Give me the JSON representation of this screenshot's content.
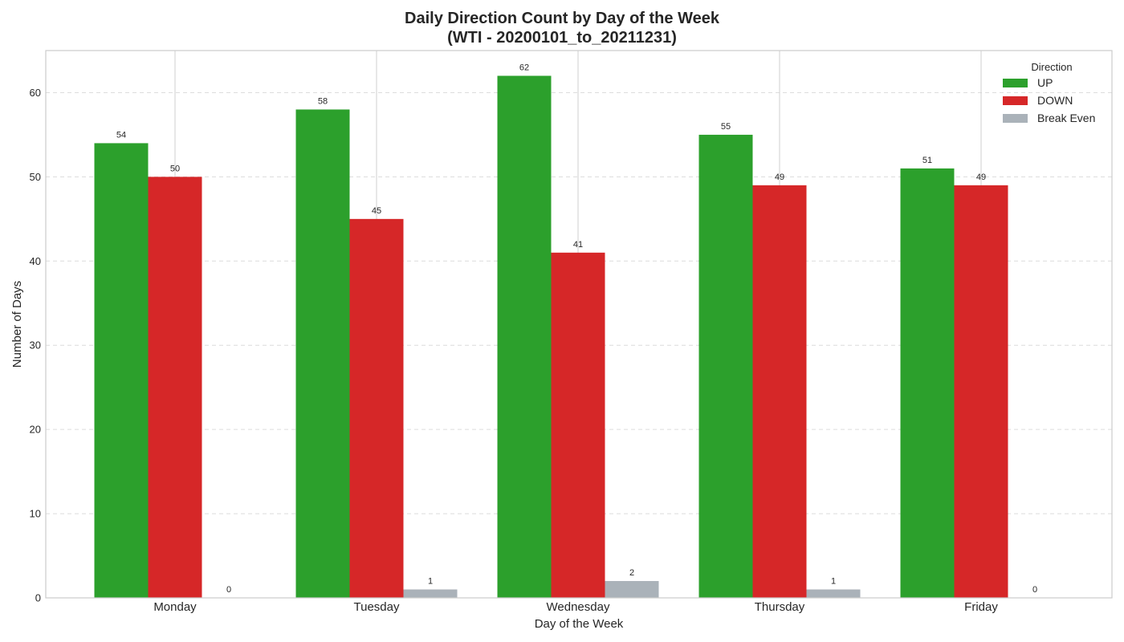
{
  "chart_data": {
    "type": "bar",
    "title_line1": "Daily Direction Count by Day of the Week",
    "title_line2": "(WTI - 20200101_to_20211231)",
    "xlabel": "Day of the Week",
    "ylabel": "Number of Days",
    "categories": [
      "Monday",
      "Tuesday",
      "Wednesday",
      "Thursday",
      "Friday"
    ],
    "series": [
      {
        "name": "UP",
        "color": "#2ca02c",
        "values": [
          54,
          58,
          62,
          55,
          51
        ]
      },
      {
        "name": "DOWN",
        "color": "#d62728",
        "values": [
          50,
          45,
          41,
          49,
          49
        ]
      },
      {
        "name": "Break Even",
        "color": "#aab2b9",
        "values": [
          0,
          1,
          2,
          1,
          0
        ]
      }
    ],
    "ylim": [
      0,
      65
    ],
    "yticks": [
      0,
      10,
      20,
      30,
      40,
      50,
      60
    ],
    "grid": true,
    "legend": {
      "title": "Direction",
      "placement": "top-right"
    }
  }
}
